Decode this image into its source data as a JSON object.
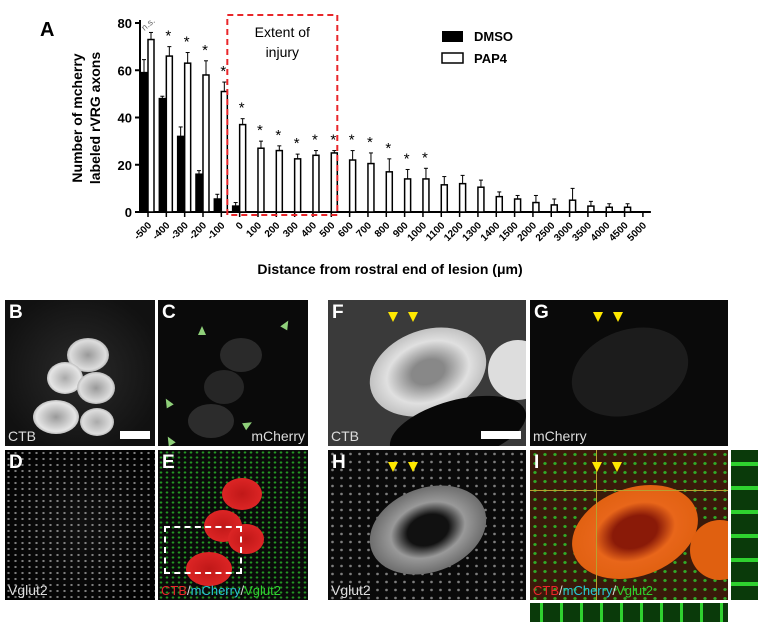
{
  "panel_label_A": "A",
  "chart_data": {
    "type": "bar",
    "xlabel": "Distance from rostral end of lesion (μm)",
    "ylabel_line1": "Number of mcherry",
    "ylabel_line2": "labeled rVRG axons",
    "ylim": [
      0,
      80
    ],
    "yticks": [
      0,
      20,
      40,
      60,
      80
    ],
    "categories": [
      "-500",
      "-400",
      "-300",
      "-200",
      "-100",
      "0",
      "100",
      "200",
      "300",
      "400",
      "500",
      "600",
      "700",
      "800",
      "900",
      "1000",
      "1100",
      "1200",
      "1300",
      "1400",
      "1500",
      "2000",
      "2500",
      "3000",
      "3500",
      "4000",
      "4500",
      "5000"
    ],
    "series": [
      {
        "name": "DMSO",
        "color": "#000000",
        "values": [
          59,
          48,
          32,
          16,
          5.5,
          2.5,
          0,
          0,
          0,
          0,
          0,
          0,
          0,
          0,
          0,
          0,
          0,
          0,
          0,
          0,
          0,
          0,
          0,
          0,
          0,
          0,
          0,
          0
        ],
        "errors": [
          5.5,
          1,
          4,
          1.5,
          2,
          1.5,
          0,
          0,
          0,
          0,
          0,
          0,
          0,
          0,
          0,
          0,
          0,
          0,
          0,
          0,
          0,
          0,
          0,
          0,
          0,
          0,
          0,
          0
        ]
      },
      {
        "name": "PAP4",
        "color": "#ffffff",
        "values": [
          73,
          66,
          63,
          58,
          51,
          37,
          27,
          26,
          22.5,
          24,
          25,
          22,
          20.5,
          17,
          14,
          14,
          11.5,
          12,
          10.5,
          6.5,
          5.5,
          4,
          3,
          5,
          2.5,
          2,
          2,
          0
        ],
        "errors": [
          3,
          4,
          4.5,
          6,
          4,
          2.5,
          3,
          2,
          2,
          2,
          1,
          4,
          4.5,
          5.5,
          4,
          4.5,
          3.5,
          3.5,
          3,
          2,
          1.5,
          3,
          2.5,
          5,
          2,
          1.5,
          1.5,
          0
        ]
      }
    ],
    "significance": [
      "n.s.",
      "*",
      "*",
      "*",
      "*",
      "*",
      "*",
      "*",
      "*",
      "*",
      "*",
      "*",
      "*",
      "*",
      "*",
      "*",
      "",
      "",
      "",
      "",
      "",
      "",
      "",
      "",
      "",
      "",
      "",
      ""
    ],
    "annotation": {
      "line1": "Extent of",
      "line2": "injury",
      "from_category": "-100",
      "to_category": "500",
      "color": "#e8262a"
    },
    "legend": {
      "placement": "top-right",
      "entries": [
        "DMSO",
        "PAP4"
      ]
    }
  },
  "panels": [
    {
      "id": "B",
      "channel": "CTB"
    },
    {
      "id": "C",
      "channel": "mCherry"
    },
    {
      "id": "D",
      "channel": "Vglut2"
    },
    {
      "id": "E",
      "merge": [
        "CTB",
        "mCherry",
        "Vglut2"
      ]
    },
    {
      "id": "F",
      "channel": "CTB"
    },
    {
      "id": "G",
      "channel": "mCherry"
    },
    {
      "id": "H",
      "channel": "Vglut2"
    },
    {
      "id": "I",
      "merge": [
        "CTB",
        "mCherry",
        "Vglut2"
      ]
    }
  ],
  "merge_sep": "/",
  "colors": {
    "ctb": "#e8262a",
    "mcherry": "#29c6d6",
    "vglut2": "#2fd12f",
    "arrow_yellow": "#ffe800",
    "arrow_green": "#8fd07a"
  }
}
